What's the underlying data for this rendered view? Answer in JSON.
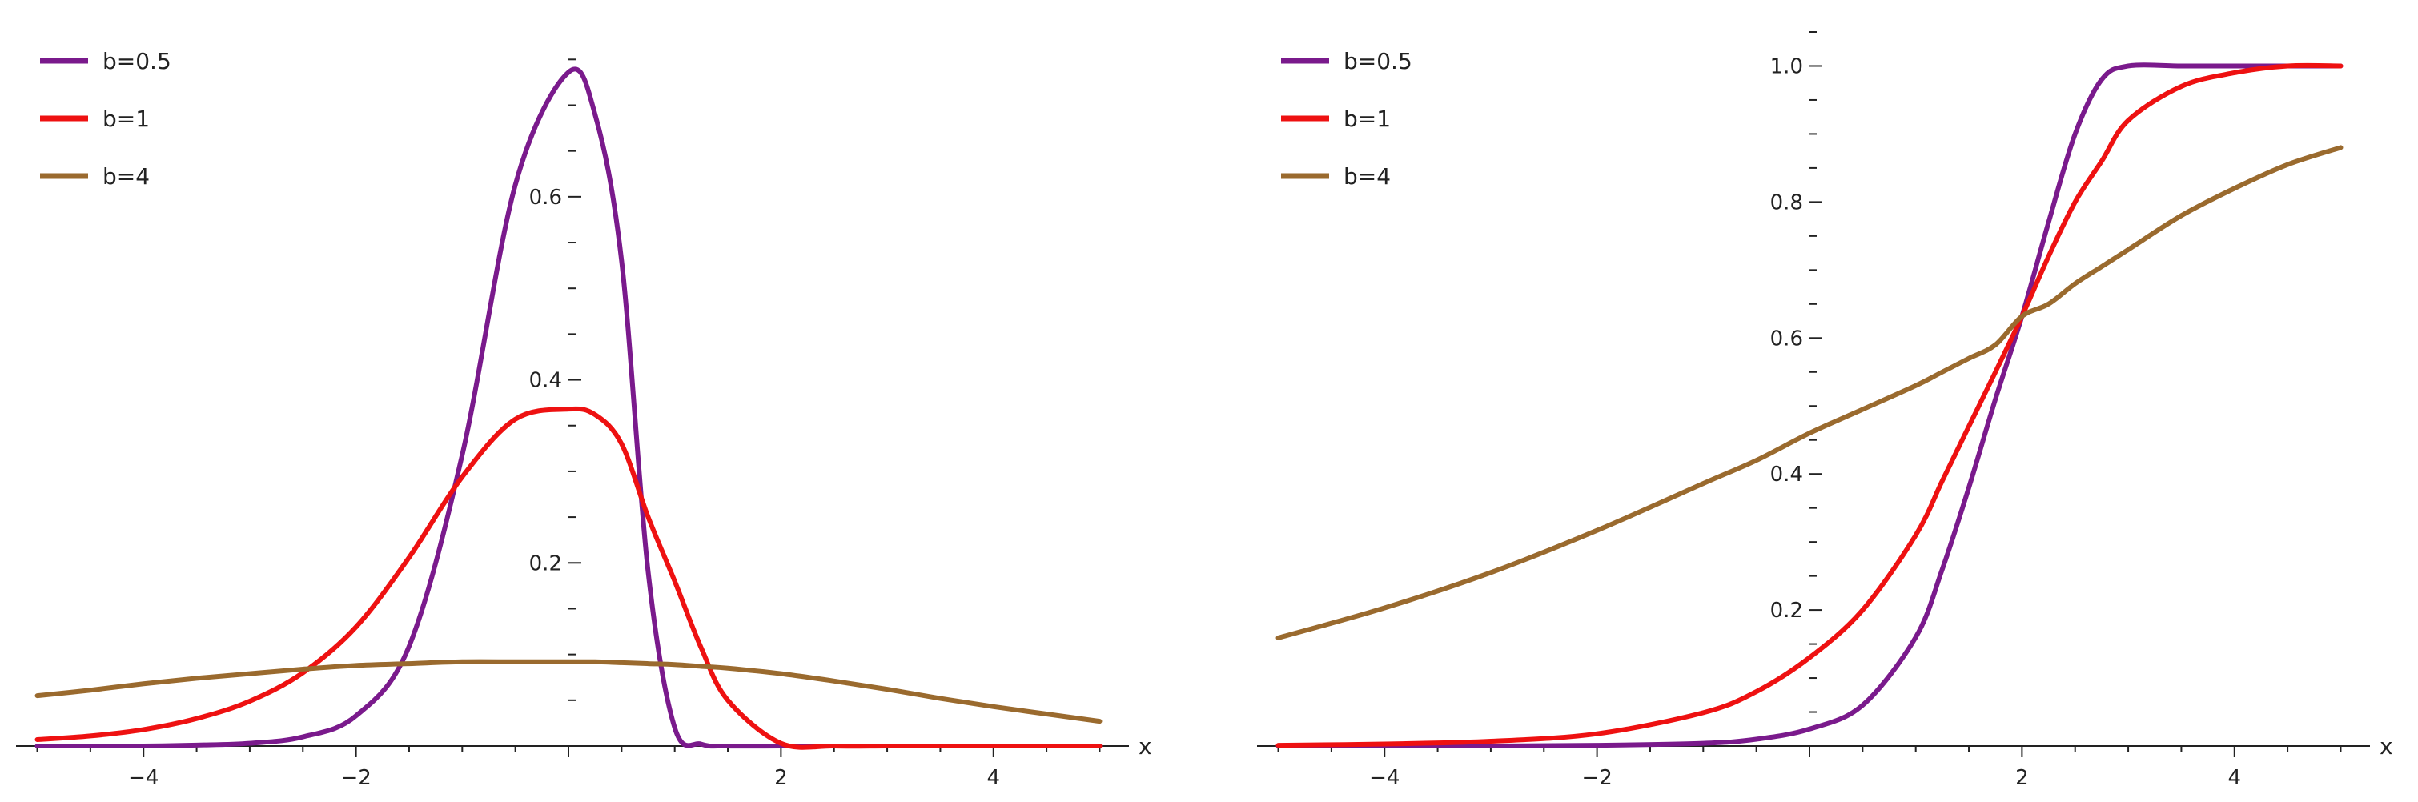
{
  "chart_data": [
    {
      "type": "line",
      "xlabel": "x",
      "ylabel": "",
      "xlim": [
        -5.2,
        5.2
      ],
      "ylim": [
        0,
        0.78
      ],
      "x_ticks": [
        -4,
        -2,
        2,
        4
      ],
      "x_tick_labels": [
        "−4",
        "−2",
        "2",
        "4"
      ],
      "x_minor_step": 0.5,
      "y_ticks": [
        0.2,
        0.4,
        0.6
      ],
      "y_tick_labels": [
        "0.2",
        "0.4",
        "0.6"
      ],
      "y_minor_step": 0.05,
      "legend": "top-left",
      "grid": false,
      "x": [
        -5,
        -4.5,
        -4,
        -3.5,
        -3,
        -2.5,
        -2,
        -1.5,
        -1,
        -0.5,
        0,
        0.25,
        0.5,
        0.75,
        1,
        1.25,
        1.5,
        2,
        2.5,
        3,
        3.5,
        4,
        4.5,
        5
      ],
      "series": [
        {
          "name": "b=0.5",
          "color": "#7a1a8c",
          "values": [
            0.0,
            0.0,
            0.0,
            0.001,
            0.003,
            0.01,
            0.033,
            0.109,
            0.318,
            0.613,
            0.736,
            0.69,
            0.53,
            0.19,
            0.02,
            0.002,
            0.0,
            0.0,
            0.0,
            0.0,
            0.0,
            0.0,
            0.0,
            0.0
          ]
        },
        {
          "name": "b=1",
          "color": "#ee1111",
          "values": [
            0.007,
            0.011,
            0.018,
            0.03,
            0.049,
            0.08,
            0.13,
            0.206,
            0.294,
            0.357,
            0.368,
            0.362,
            0.33,
            0.25,
            0.18,
            0.107,
            0.05,
            0.003,
            0.0,
            0.0,
            0.0,
            0.0,
            0.0,
            0.0
          ]
        },
        {
          "name": "b=4",
          "color": "#9a6a2e",
          "values": [
            0.055,
            0.061,
            0.068,
            0.074,
            0.079,
            0.084,
            0.088,
            0.09,
            0.092,
            0.092,
            0.092,
            0.092,
            0.091,
            0.09,
            0.089,
            0.087,
            0.085,
            0.079,
            0.071,
            0.062,
            0.052,
            0.043,
            0.035,
            0.027
          ]
        }
      ]
    },
    {
      "type": "line",
      "xlabel": "x",
      "ylabel": "",
      "xlim": [
        -5.2,
        5.2
      ],
      "ylim": [
        0,
        1.05
      ],
      "x_ticks": [
        -4,
        -2,
        2,
        4
      ],
      "x_tick_labels": [
        "−4",
        "−2",
        "2",
        "4"
      ],
      "x_minor_step": 0.5,
      "y_ticks": [
        0.2,
        0.4,
        0.6,
        0.8,
        1.0
      ],
      "y_tick_labels": [
        "0.2",
        "0.4",
        "0.6",
        "0.8",
        "1.0"
      ],
      "y_minor_step": 0.05,
      "legend": "top-left",
      "grid": false,
      "x": [
        -5,
        -4,
        -3,
        -2,
        -1,
        -0.5,
        0,
        0.5,
        1,
        1.25,
        1.5,
        1.75,
        2,
        2.25,
        2.5,
        2.75,
        3,
        3.5,
        4,
        4.5,
        5
      ],
      "series": [
        {
          "name": "b=0.5",
          "color": "#7a1a8c",
          "values": [
            0.0,
            0.0,
            0.0,
            0.001,
            0.004,
            0.01,
            0.025,
            0.06,
            0.16,
            0.26,
            0.38,
            0.51,
            0.632,
            0.77,
            0.9,
            0.98,
            1.0,
            1.0,
            1.0,
            1.0,
            1.0
          ]
        },
        {
          "name": "b=1",
          "color": "#ee1111",
          "values": [
            0.001,
            0.003,
            0.007,
            0.018,
            0.049,
            0.08,
            0.13,
            0.2,
            0.31,
            0.39,
            0.47,
            0.55,
            0.632,
            0.72,
            0.8,
            0.86,
            0.92,
            0.97,
            0.99,
            1.0,
            1.0
          ]
        },
        {
          "name": "b=4",
          "color": "#9a6a2e",
          "values": [
            0.159,
            0.203,
            0.255,
            0.317,
            0.386,
            0.42,
            0.46,
            0.495,
            0.53,
            0.55,
            0.57,
            0.59,
            0.632,
            0.65,
            0.68,
            0.705,
            0.73,
            0.78,
            0.82,
            0.855,
            0.88
          ]
        }
      ]
    }
  ]
}
